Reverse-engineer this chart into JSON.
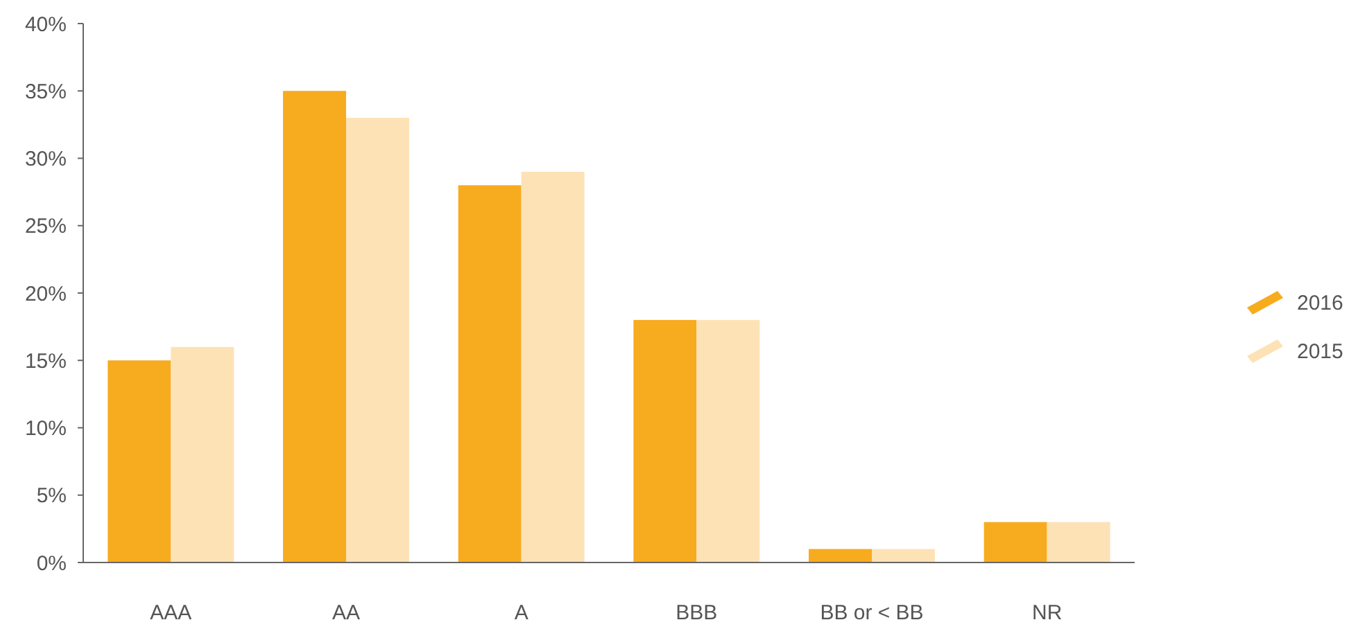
{
  "chart_data": {
    "type": "bar",
    "categories": [
      "AAA",
      "AA",
      "A",
      "BBB",
      "BB or < BB",
      "NR"
    ],
    "series": [
      {
        "name": "2016",
        "color": "#f7ab1e",
        "values": [
          15,
          35,
          28,
          18,
          1,
          3
        ]
      },
      {
        "name": "2015",
        "color": "#fde2b6",
        "values": [
          16,
          33,
          29,
          18,
          1,
          3
        ]
      }
    ],
    "ylim": [
      0,
      40
    ],
    "yticks": [
      {
        "value": 0,
        "label": "0%"
      },
      {
        "value": 5,
        "label": "5%"
      },
      {
        "value": 10,
        "label": "10%"
      },
      {
        "value": 15,
        "label": "15%"
      },
      {
        "value": 20,
        "label": "20%"
      },
      {
        "value": 25,
        "label": "25%"
      },
      {
        "value": 30,
        "label": "30%"
      },
      {
        "value": 35,
        "label": "35%"
      },
      {
        "value": 40,
        "label": "40%"
      }
    ],
    "grid": false,
    "legend": "right"
  }
}
